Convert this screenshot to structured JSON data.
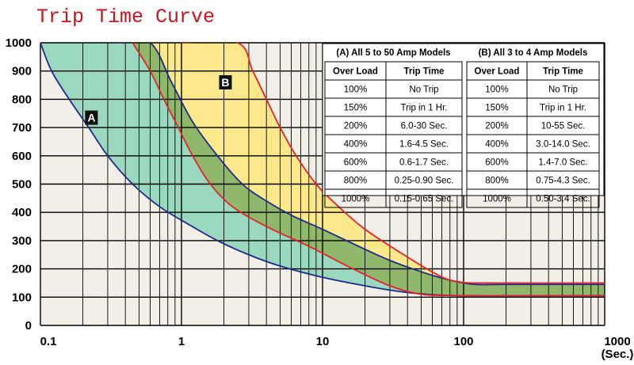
{
  "chart_data": {
    "type": "line",
    "title": "Trip Time Curve",
    "x_scale": "log",
    "xlim": [
      0.1,
      1000
    ],
    "ylim": [
      0,
      1000
    ],
    "x_ticks": [
      "0.1",
      "1",
      "10",
      "100",
      "1000"
    ],
    "x_unit_label": "(Sec.)",
    "y_ticks": [
      "0",
      "100",
      "200",
      "300",
      "400",
      "500",
      "600",
      "700",
      "800",
      "900",
      "1000"
    ],
    "grid": true,
    "bands": [
      {
        "name": "A",
        "fill": "#9ad9bf",
        "edge_color": "#1e2a8a",
        "lower": [
          [
            0.1,
            1000
          ],
          [
            0.12,
            900
          ],
          [
            0.16,
            800
          ],
          [
            0.22,
            700
          ],
          [
            0.3,
            600
          ],
          [
            0.45,
            500
          ],
          [
            0.7,
            420
          ],
          [
            1.1,
            360
          ],
          [
            1.8,
            300
          ],
          [
            3,
            250
          ],
          [
            5,
            210
          ],
          [
            10,
            170
          ],
          [
            20,
            140
          ],
          [
            35,
            120
          ],
          [
            55,
            110
          ],
          [
            80,
            106
          ],
          [
            150,
            105
          ],
          [
            1000,
            105
          ]
        ],
        "upper": [
          [
            0.35,
            1000
          ],
          [
            0.6,
            1000
          ],
          [
            0.85,
            860
          ],
          [
            1.2,
            720
          ],
          [
            1.8,
            600
          ],
          [
            2.7,
            500
          ],
          [
            4,
            440
          ],
          [
            6,
            390
          ],
          [
            10,
            340
          ],
          [
            18,
            280
          ],
          [
            30,
            230
          ],
          [
            50,
            190
          ],
          [
            80,
            160
          ],
          [
            120,
            145
          ],
          [
            200,
            145
          ],
          [
            1000,
            145
          ]
        ]
      },
      {
        "name": "B",
        "fill": "#fde67a",
        "edge_color": "#e8202a",
        "lower": [
          [
            0.45,
            1000
          ],
          [
            0.6,
            900
          ],
          [
            0.75,
            800
          ],
          [
            0.95,
            700
          ],
          [
            1.2,
            600
          ],
          [
            1.6,
            500
          ],
          [
            2.3,
            420
          ],
          [
            4,
            350
          ],
          [
            8,
            280
          ],
          [
            15,
            210
          ],
          [
            30,
            140
          ],
          [
            50,
            110
          ],
          [
            80,
            106
          ],
          [
            150,
            105
          ],
          [
            1000,
            105
          ]
        ],
        "upper": [
          [
            1.0,
            1000
          ],
          [
            2.5,
            1000
          ],
          [
            3.2,
            900
          ],
          [
            4,
            800
          ],
          [
            5,
            700
          ],
          [
            6.5,
            600
          ],
          [
            9,
            500
          ],
          [
            13,
            420
          ],
          [
            20,
            340
          ],
          [
            35,
            260
          ],
          [
            55,
            200
          ],
          [
            75,
            165
          ],
          [
            100,
            152
          ],
          [
            150,
            150
          ],
          [
            1000,
            150
          ]
        ]
      }
    ],
    "labels": [
      "A",
      "B"
    ],
    "tables": [
      {
        "title": "(A) All 5 to 50 Amp Models",
        "columns": [
          "Over Load",
          "Trip Time"
        ],
        "rows": [
          [
            "100%",
            "No Trip"
          ],
          [
            "150%",
            "Trip in 1 Hr."
          ],
          [
            "200%",
            "6.0-30 Sec."
          ],
          [
            "400%",
            "1.6-4.5 Sec."
          ],
          [
            "600%",
            "0.6-1.7 Sec."
          ],
          [
            "800%",
            "0.25-0.90 Sec."
          ],
          [
            "1000%",
            "0.15-0.65 Sec."
          ]
        ]
      },
      {
        "title": "(B) All 3 to 4 Amp Models",
        "columns": [
          "Over Load",
          "Trip Time"
        ],
        "rows": [
          [
            "100%",
            "No Trip"
          ],
          [
            "150%",
            "Trip in 1 Hr."
          ],
          [
            "200%",
            "10-55 Sec."
          ],
          [
            "400%",
            "3.0-14.0 Sec."
          ],
          [
            "600%",
            "1.4-7.0 Sec."
          ],
          [
            "800%",
            "0.75-4.3 Sec."
          ],
          [
            "1000%",
            "0.50-3.4 Sec."
          ]
        ]
      }
    ]
  },
  "colors": {
    "title": "#c8141e",
    "plot_bg": "#f2efe9",
    "grid": "#000000",
    "band_a_fill": "#9ad9bf",
    "band_b_fill": "#fde67a",
    "overlap_fill": "#8fb86a",
    "blue_edge": "#1e2a8a",
    "red_edge": "#e8202a"
  }
}
